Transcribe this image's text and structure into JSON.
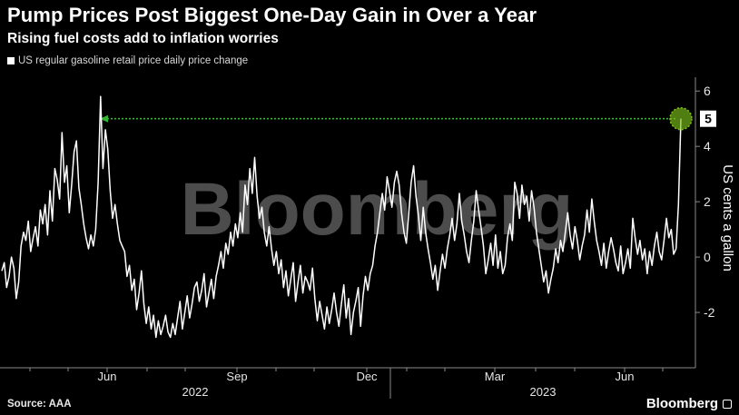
{
  "title": "Pump Prices Post Biggest One-Day Gain in Over a Year",
  "subtitle": "Rising fuel costs add to inflation worries",
  "legend_label": "US regular gasoline retail price daily price change",
  "source": "Source: AAA",
  "brand": "Bloomberg",
  "watermark": "Bloomberg",
  "colors": {
    "background": "#000000",
    "line": "#ffffff",
    "highlight": "#7cc21a",
    "arrow": "#2fb52f",
    "axis": "#8a8a8a",
    "watermark": "#5a5a5a"
  },
  "chart_data": {
    "type": "line",
    "title": "Pump Prices Post Biggest One-Day Gain in Over a Year",
    "subtitle": "Rising fuel costs add to inflation worries",
    "ylabel": "US cents a gallon",
    "ylim": [
      -4,
      6.5
    ],
    "y_ticks": [
      -2,
      0,
      2,
      4,
      6
    ],
    "y_tick_labels": [
      "-2",
      "0",
      "2",
      "4",
      "6"
    ],
    "x_tick_labels": [
      "Jun",
      "Sep",
      "Dec",
      "Mar",
      "Jun"
    ],
    "year_labels": [
      "2022",
      "2023"
    ],
    "grid": false,
    "legend_position": "top-left",
    "annotation": {
      "value": 5,
      "label": "5"
    },
    "series": [
      {
        "name": "US regular gasoline retail price daily price change",
        "values": [
          -0.5,
          -0.2,
          -1.1,
          -0.7,
          0.0,
          -0.4,
          -1.5,
          -0.9,
          0.4,
          0.9,
          0.6,
          1.3,
          0.2,
          0.7,
          1.1,
          0.4,
          1.7,
          1.2,
          1.9,
          0.8,
          2.4,
          1.3,
          3.2,
          2.8,
          2.1,
          4.5,
          2.7,
          3.3,
          1.6,
          2.6,
          3.8,
          4.2,
          2.5,
          1.9,
          1.2,
          0.7,
          0.3,
          0.8,
          0.4,
          1.0,
          2.7,
          5.8,
          3.2,
          4.6,
          3.9,
          2.4,
          1.4,
          1.9,
          1.2,
          0.6,
          0.4,
          0.2,
          -0.7,
          -0.3,
          -1.2,
          -0.8,
          -1.9,
          -1.3,
          -0.5,
          -1.7,
          -2.4,
          -1.8,
          -2.6,
          -2.1,
          -2.9,
          -2.3,
          -2.8,
          -2.5,
          -2.1,
          -2.7,
          -2.9,
          -2.4,
          -2.8,
          -2.2,
          -1.6,
          -2.6,
          -2.0,
          -1.4,
          -2.2,
          -1.7,
          -1.1,
          -0.9,
          -1.6,
          -1.2,
          -0.6,
          -1.8,
          -1.3,
          -0.8,
          -1.5,
          -0.7,
          -0.3,
          0.2,
          -0.4,
          0.5,
          0.1,
          0.9,
          0.4,
          1.2,
          0.7,
          1.6,
          0.9,
          2.6,
          1.9,
          3.2,
          2.3,
          3.6,
          2.2,
          1.4,
          1.8,
          0.9,
          0.4,
          1.1,
          0.3,
          -0.3,
          0.2,
          -0.6,
          -0.1,
          -1.1,
          -0.5,
          -1.4,
          -0.8,
          -0.2,
          -1.6,
          -0.9,
          -0.3,
          -1.3,
          -0.7,
          -0.9,
          -1.2,
          -0.4,
          -1.5,
          -2.3,
          -1.6,
          -2.1,
          -2.6,
          -1.8,
          -2.4,
          -1.9,
          -1.3,
          -2.0,
          -2.5,
          -1.7,
          -1.0,
          -2.2,
          -1.5,
          -2.8,
          -2.0,
          -1.6,
          -1.1,
          -2.5,
          -1.4,
          -0.7,
          -1.2,
          -0.6,
          -0.3,
          0.4,
          0.9,
          1.6,
          2.3,
          1.7,
          2.9,
          2.4,
          1.8,
          2.7,
          3.1,
          2.6,
          1.6,
          0.9,
          0.5,
          1.6,
          2.7,
          3.3,
          2.2,
          1.5,
          0.6,
          1.8,
          0.9,
          0.3,
          -0.2,
          -0.8,
          -0.3,
          -1.2,
          -0.5,
          0.1,
          -0.4,
          0.3,
          0.8,
          1.4,
          0.6,
          1.2,
          2.3,
          1.3,
          0.8,
          0.2,
          -0.2,
          0.6,
          1.3,
          2.4,
          1.7,
          1.1,
          0.4,
          -0.6,
          -0.1,
          0.5,
          -0.3,
          0.8,
          -0.4,
          0.2,
          -0.6,
          -0.3,
          0.7,
          1.2,
          0.6,
          2.7,
          2.3,
          1.4,
          2.6,
          1.9,
          2.2,
          1.3,
          2.4,
          1.8,
          0.9,
          0.3,
          -0.3,
          -0.9,
          -0.5,
          -1.3,
          -0.8,
          -0.4,
          0.3,
          -0.2,
          0.6,
          0.2,
          0.9,
          1.6,
          0.8,
          0.3,
          1.1,
          0.6,
          -0.1,
          0.4,
          0.8,
          1.7,
          0.9,
          2.1,
          1.3,
          0.6,
          0.2,
          -0.3,
          0.5,
          -0.4,
          0.2,
          0.7,
          0.3,
          -0.2,
          -0.5,
          0.4,
          -0.6,
          -0.2,
          0.3,
          -0.4,
          1.4,
          0.7,
          0.1,
          0.6,
          -0.1,
          0.3,
          -0.6,
          0.2,
          -0.3,
          0.4,
          0.9,
          0.2,
          -0.1,
          0.6,
          1.4,
          0.7,
          1.0,
          0.1,
          0.3,
          1.9,
          5.0
        ]
      }
    ]
  }
}
